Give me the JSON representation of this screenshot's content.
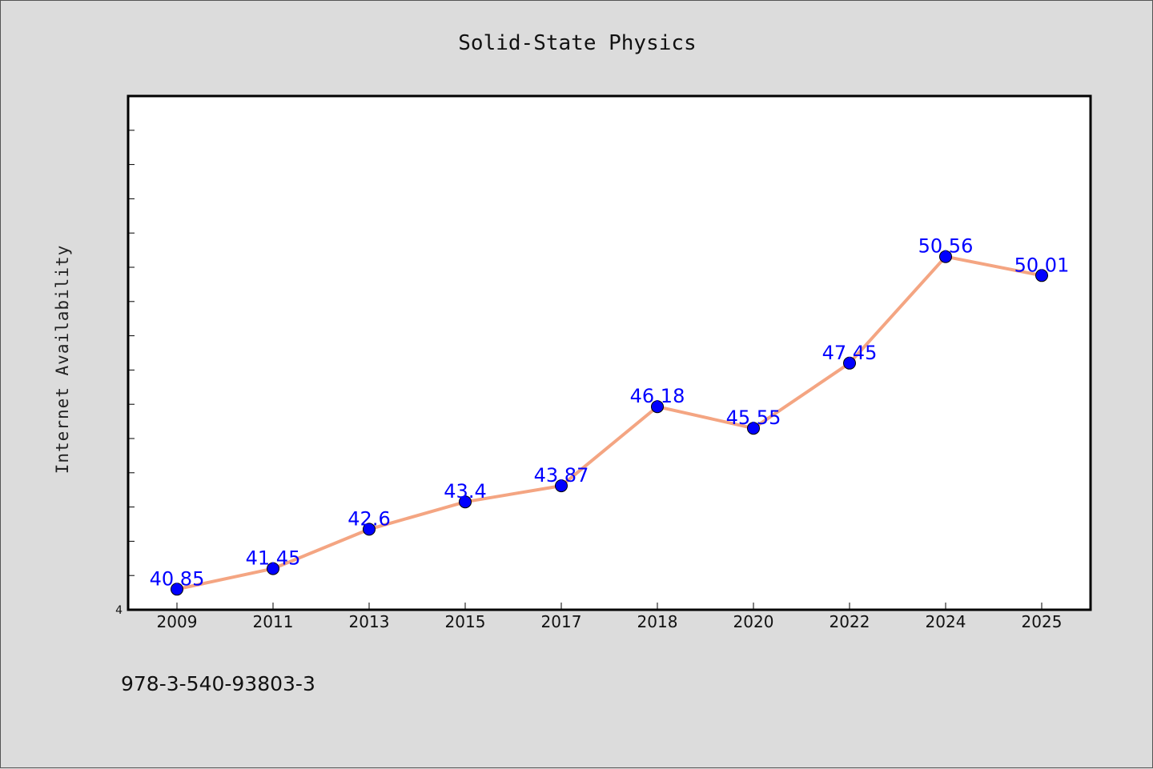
{
  "chart_data": {
    "type": "line",
    "title": "Solid-State Physics",
    "xlabel": "",
    "ylabel": "Internet Availability",
    "categories": [
      "2009",
      "2011",
      "2013",
      "2015",
      "2017",
      "2018",
      "2020",
      "2022",
      "2024",
      "2025"
    ],
    "series": [
      {
        "values": [
          40.85,
          41.45,
          42.6,
          43.4,
          43.87,
          46.18,
          45.55,
          47.45,
          50.56,
          50.01
        ],
        "data_labels": [
          "40.85",
          "41.45",
          "42.6",
          "43.4",
          "43.87",
          "46.18",
          "45.55",
          "47.45",
          "50.56",
          "50.01"
        ],
        "line_color": "#f4a582",
        "marker_color": "#0000ff"
      }
    ],
    "ylim": [
      40.25,
      55.25
    ],
    "y_tick_labels": [
      "4"
    ],
    "grid": false,
    "legend": "none"
  },
  "footer": {
    "note": "978-3-540-93803-3"
  },
  "colors": {
    "background": "#dcdcdc",
    "plot_background": "#ffffff",
    "line": "#f4a582",
    "marker": "#0000ff",
    "data_label": "#0000ff"
  }
}
